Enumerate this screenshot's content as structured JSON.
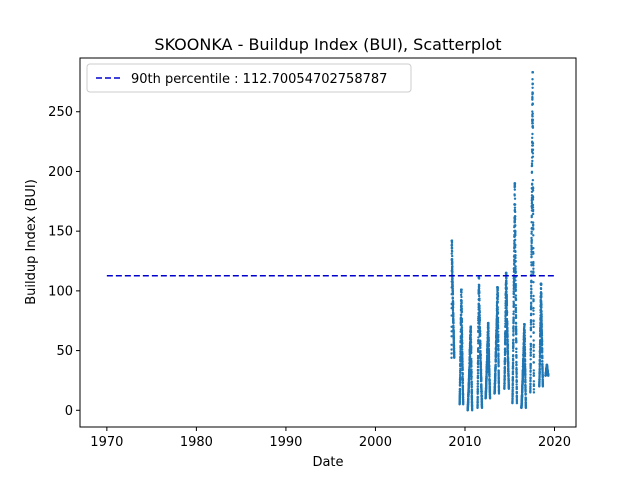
{
  "chart_data": {
    "type": "scatter",
    "title": "SKOONKA - Buildup Index (BUI), Scatterplot",
    "xlabel": "Date",
    "ylabel": "Buildup Index (BUI)",
    "xlim": [
      1967.0,
      2022.4
    ],
    "ylim": [
      -14.0,
      295.0
    ],
    "xticks": [
      1970,
      1980,
      1990,
      2000,
      2010,
      2020
    ],
    "yticks": [
      0,
      50,
      100,
      150,
      200,
      250
    ],
    "grid": false,
    "legend_position": "top-left",
    "colors": {
      "points": "#1f77b4",
      "percentile_line": "#0000cd",
      "axes": "#000000"
    },
    "reference_line": {
      "label": "90th percentile : 112.70054702758787",
      "y": 112.70054702758787,
      "x_range": [
        1970,
        2020
      ],
      "style": "dashed"
    },
    "season_clusters": [
      {
        "start": 2008.5,
        "end": 2008.8,
        "min": 44,
        "max": 142,
        "peak_at": 0.1
      },
      {
        "start": 2009.4,
        "end": 2009.8,
        "min": 5,
        "max": 101,
        "peak_at": 0.5
      },
      {
        "start": 2010.3,
        "end": 2010.8,
        "min": 0,
        "max": 70,
        "peak_at": 0.7
      },
      {
        "start": 2011.4,
        "end": 2011.9,
        "min": 2,
        "max": 111,
        "peak_at": 0.3
      },
      {
        "start": 2012.3,
        "end": 2012.8,
        "min": 10,
        "max": 73,
        "peak_at": 0.6
      },
      {
        "start": 2013.3,
        "end": 2013.8,
        "min": 14,
        "max": 103,
        "peak_at": 0.7
      },
      {
        "start": 2014.4,
        "end": 2014.9,
        "min": 18,
        "max": 115,
        "peak_at": 0.4
      },
      {
        "start": 2015.3,
        "end": 2015.8,
        "min": 6,
        "max": 190,
        "peak_at": 0.55
      },
      {
        "start": 2016.3,
        "end": 2016.8,
        "min": 2,
        "max": 72,
        "peak_at": 0.7
      },
      {
        "start": 2017.3,
        "end": 2017.7,
        "min": 15,
        "max": 283,
        "peak_at": 0.65
      },
      {
        "start": 2018.3,
        "end": 2018.7,
        "min": 20,
        "max": 106,
        "peak_at": 0.5
      },
      {
        "start": 2019.0,
        "end": 2019.3,
        "min": 29,
        "max": 38,
        "peak_at": 0.5
      }
    ]
  }
}
